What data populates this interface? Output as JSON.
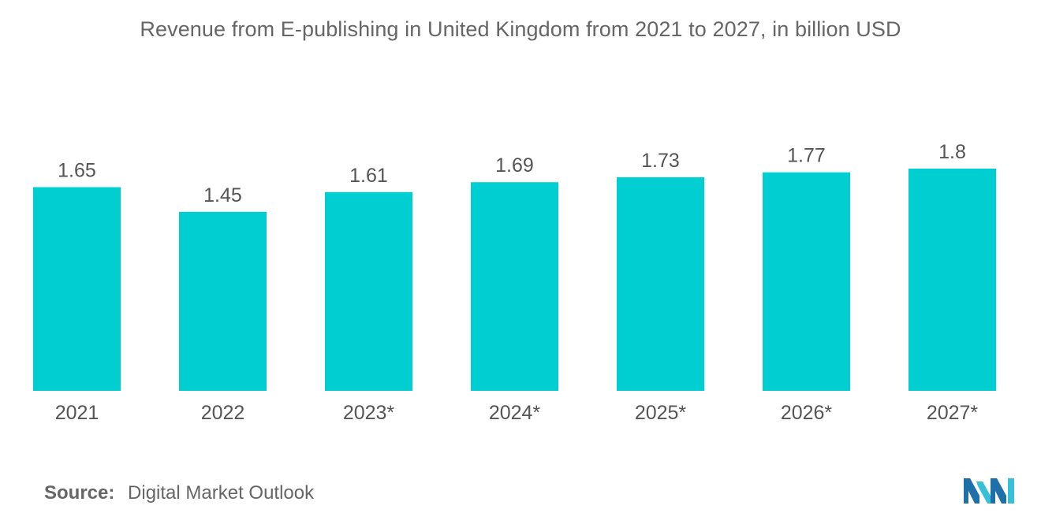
{
  "chart_data": {
    "type": "bar",
    "title": "Revenue from E-publishing in United Kingdom from 2021 to 2027, in billion USD",
    "categories": [
      "2021",
      "2022",
      "2023*",
      "2024*",
      "2025*",
      "2026*",
      "2027*"
    ],
    "values": [
      1.65,
      1.45,
      1.61,
      1.69,
      1.73,
      1.77,
      1.8
    ],
    "value_labels": [
      "1.65",
      "1.45",
      "1.61",
      "1.69",
      "1.73",
      "1.77",
      "1.8"
    ],
    "xlabel": "",
    "ylabel": "",
    "ylim": [
      0,
      1.8
    ],
    "grid": false,
    "legend": "none",
    "bar_color": "#00CED1"
  },
  "source": {
    "label": "Source:",
    "text": "Digital Market Outlook"
  },
  "colors": {
    "bar": "#00CED1",
    "logo_dark": "#1f6fa8",
    "logo_light": "#38c0d6"
  }
}
